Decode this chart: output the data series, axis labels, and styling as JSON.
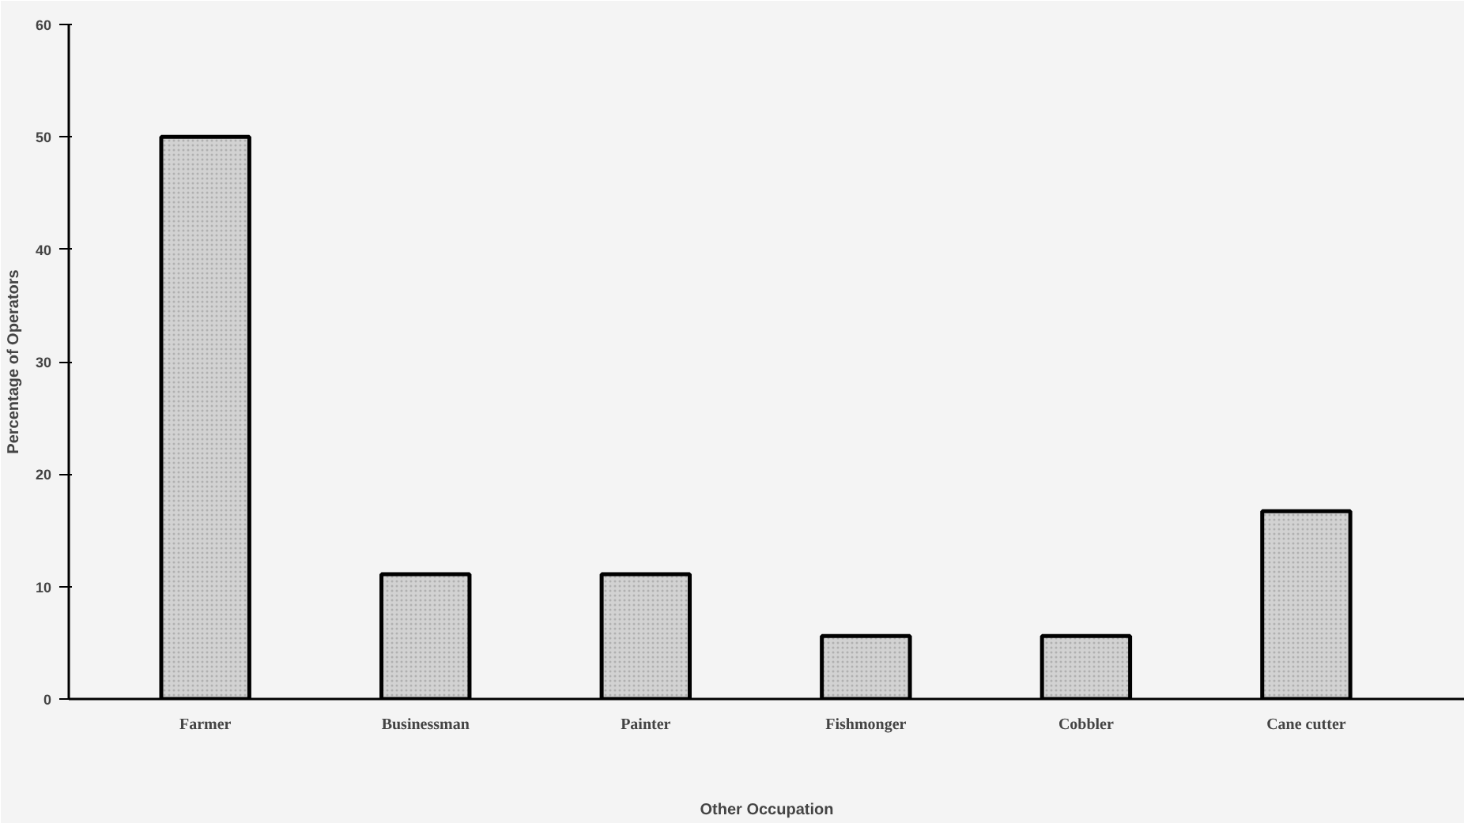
{
  "chart_data": {
    "type": "bar",
    "xlabel": "Other Occupation",
    "ylabel": "Percentage of Operators",
    "categories": [
      "Farmer",
      "Businessman",
      "Painter",
      "Fishmonger",
      "Cobbler",
      "Cane cutter"
    ],
    "values": [
      50,
      11.1,
      11.1,
      5.6,
      5.6,
      16.7
    ],
    "color": "#d2d2d2",
    "ylim": [
      0,
      60
    ],
    "yticks": [
      0,
      10,
      20,
      30,
      40,
      50,
      60
    ],
    "grid": false
  }
}
